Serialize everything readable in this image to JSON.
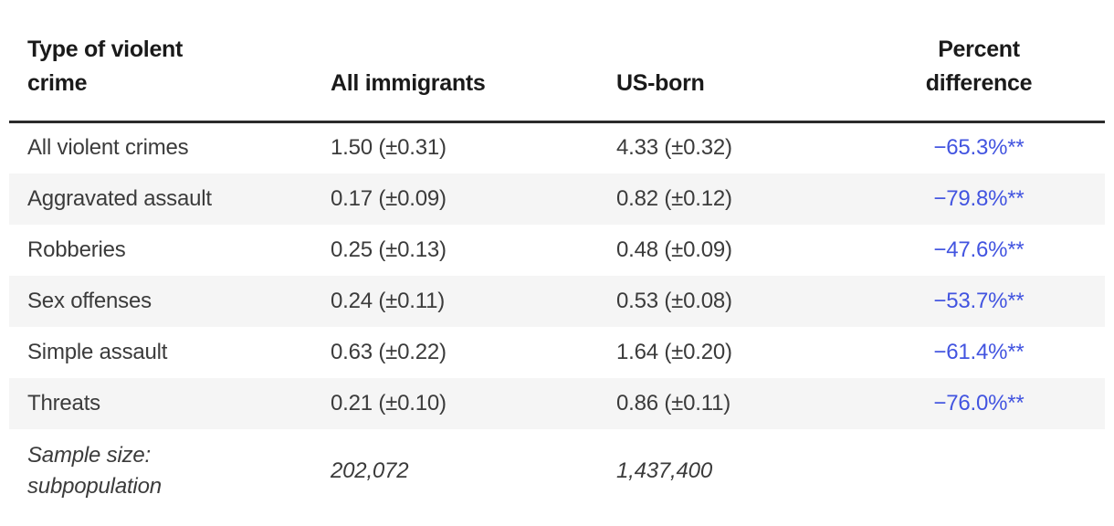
{
  "chart_data": {
    "type": "table",
    "columns": [
      "Type of violent crime",
      "All immigrants",
      "US-born",
      "Percent difference"
    ],
    "rows": [
      [
        "All violent crimes",
        "1.50 (±0.31)",
        "4.33 (±0.32)",
        "−65.3%**"
      ],
      [
        "Aggravated assault",
        "0.17 (±0.09)",
        "0.82 (±0.12)",
        "−79.8%**"
      ],
      [
        "Robberies",
        "0.25 (±0.13)",
        "0.48 (±0.09)",
        "−47.6%**"
      ],
      [
        "Sex offenses",
        "0.24 (±0.11)",
        "0.53 (±0.08)",
        "−53.7%**"
      ],
      [
        "Simple assault",
        "0.63 (±0.22)",
        "1.64 (±0.20)",
        "−61.4%**"
      ],
      [
        "Threats",
        "0.21 (±0.10)",
        "0.86 (±0.11)",
        "−76.0%**"
      ],
      [
        "Sample size: subpopulation",
        "202,072",
        "1,437,400",
        ""
      ]
    ],
    "layout": {
      "striped_rows": true,
      "percent_column_align": "center",
      "footer_row_style": "italic"
    }
  },
  "header": {
    "col1": "Type of violent\ncrime",
    "col2": "All immigrants",
    "col3": "US-born",
    "col4": "Percent\ndifference"
  },
  "footer": {
    "label": "Sample size:\nsubpopulation"
  },
  "colors": {
    "accent_blue": "#4254e0",
    "alt_row_bg": "#f5f5f5",
    "header_rule": "#2b2b2b",
    "body_text": "#3b3b3b",
    "header_text": "#1a1a1a"
  }
}
